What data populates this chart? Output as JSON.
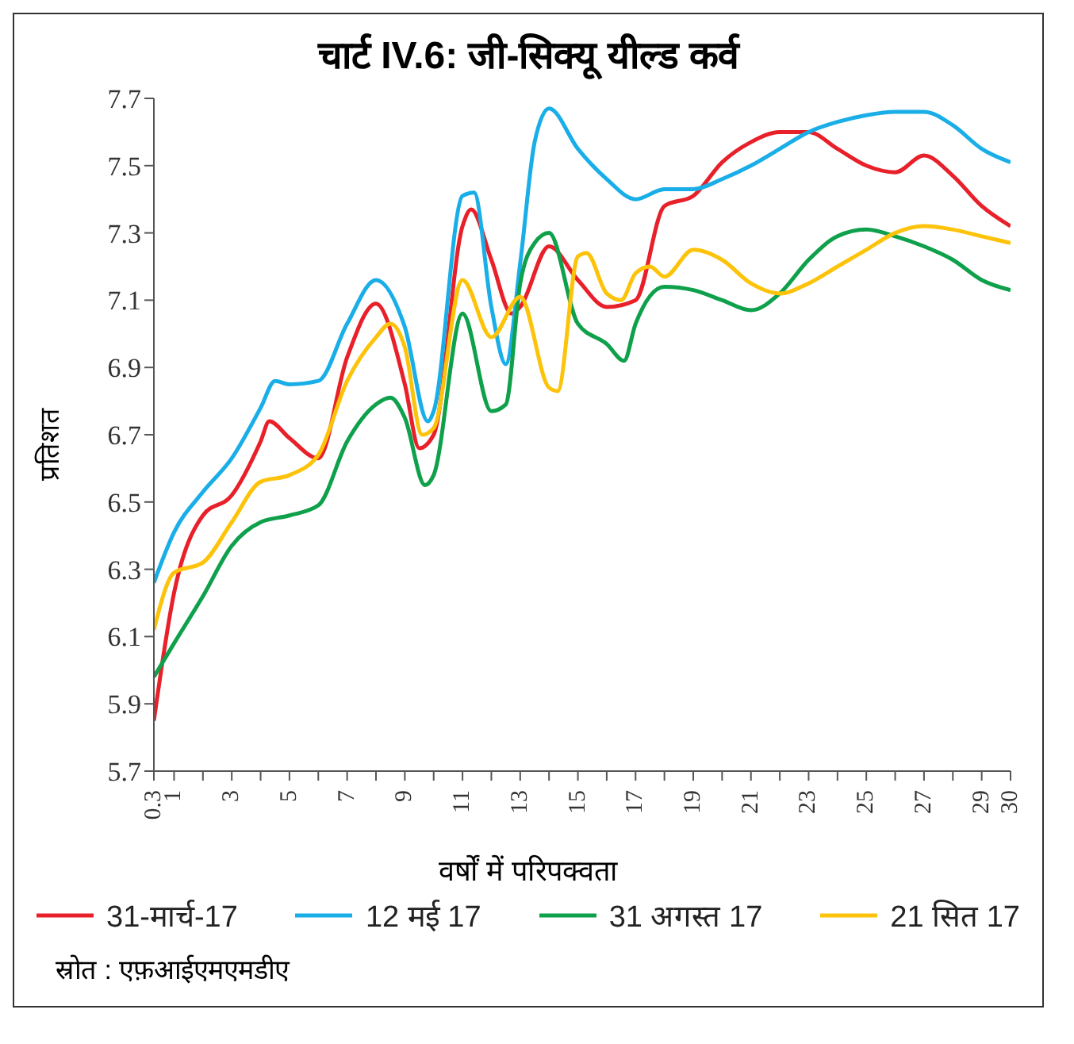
{
  "chart_data": {
    "type": "line",
    "title": "चार्ट IV.6: जी-सिक्यू यील्ड कर्व",
    "xlabel": "वर्षों में परिपक्वता",
    "ylabel": "प्रतिशत",
    "xlim": [
      0.3,
      30
    ],
    "xticks": [
      0.3,
      1,
      {
        "value": 2,
        "label": null
      },
      3,
      {
        "value": 4,
        "label": null
      },
      5,
      {
        "value": 6,
        "label": null
      },
      7,
      {
        "value": 8,
        "label": null
      },
      9,
      {
        "value": 10,
        "label": null
      },
      11,
      {
        "value": 12,
        "label": null
      },
      13,
      {
        "value": 14,
        "label": null
      },
      15,
      {
        "value": 16,
        "label": null
      },
      17,
      {
        "value": 18,
        "label": null
      },
      19,
      {
        "value": 20,
        "label": null
      },
      21,
      {
        "value": 22,
        "label": null
      },
      23,
      {
        "value": 24,
        "label": null
      },
      25,
      {
        "value": 26,
        "label": null
      },
      27,
      {
        "value": 28,
        "label": null
      },
      29,
      30
    ],
    "ylim": [
      5.7,
      7.7
    ],
    "yticks": [
      5.7,
      5.9,
      6.1,
      6.3,
      6.5,
      6.7,
      6.9,
      7.1,
      7.3,
      7.5,
      7.7
    ],
    "grid": false,
    "legend": "bottom",
    "marker": "none",
    "line_style": "solid",
    "annotations": [
      "स्रोत : एफ़आईएमएमडीए"
    ],
    "series": [
      {
        "name": "31-मार्च-17",
        "color": "#e8202a",
        "x": [
          0.3,
          1,
          2,
          3,
          4,
          4.3,
          5,
          6,
          7,
          8,
          9,
          9.5,
          10,
          11,
          11.3,
          12,
          12.7,
          13,
          14,
          15,
          16,
          17,
          18,
          19,
          20,
          21,
          22,
          23,
          24,
          25,
          26,
          27,
          28,
          29,
          30
        ],
        "values": [
          5.85,
          6.23,
          6.46,
          6.52,
          6.68,
          6.74,
          6.69,
          6.63,
          6.93,
          7.09,
          6.85,
          6.66,
          6.7,
          7.32,
          7.37,
          7.22,
          7.06,
          7.08,
          7.26,
          7.16,
          7.08,
          7.1,
          7.38,
          7.41,
          7.51,
          7.57,
          7.6,
          7.6,
          7.55,
          7.5,
          7.48,
          7.53,
          7.47,
          7.38,
          7.32
        ]
      },
      {
        "name": "12 मई 17",
        "color": "#1aaee8",
        "x": [
          0.3,
          1,
          2,
          3,
          4,
          4.5,
          5,
          6,
          7,
          8,
          9,
          9.8,
          10,
          11,
          11.4,
          12,
          12.5,
          13,
          13.5,
          14,
          15,
          16,
          17,
          18,
          19,
          20,
          21,
          22,
          23,
          24,
          25,
          26,
          27,
          28,
          29,
          30
        ],
        "values": [
          6.26,
          6.41,
          6.53,
          6.63,
          6.78,
          6.86,
          6.85,
          6.86,
          7.03,
          7.16,
          7.02,
          6.74,
          6.77,
          7.41,
          7.42,
          7.08,
          6.91,
          7.21,
          7.57,
          7.67,
          7.55,
          7.46,
          7.4,
          7.43,
          7.43,
          7.46,
          7.5,
          7.55,
          7.6,
          7.63,
          7.65,
          7.66,
          7.66,
          7.62,
          7.55,
          7.51
        ]
      },
      {
        "name": "31 अगस्त 17",
        "color": "#0ea04b",
        "x": [
          0.3,
          1,
          2,
          3,
          4,
          5,
          6,
          7,
          8,
          8.5,
          9,
          9.7,
          10,
          11,
          12,
          12.5,
          13,
          13.5,
          14,
          15,
          16,
          16.6,
          17,
          18,
          19,
          20,
          21,
          22,
          23,
          24,
          25,
          26,
          27,
          28,
          29,
          30
        ],
        "values": [
          5.98,
          6.08,
          6.22,
          6.37,
          6.44,
          6.46,
          6.49,
          6.68,
          6.79,
          6.81,
          6.75,
          6.55,
          6.58,
          7.06,
          6.77,
          6.79,
          7.15,
          7.27,
          7.3,
          7.03,
          6.97,
          6.92,
          7.03,
          7.14,
          7.13,
          7.1,
          7.07,
          7.12,
          7.22,
          7.29,
          7.31,
          7.29,
          7.26,
          7.22,
          7.16,
          7.13
        ]
      },
      {
        "name": "21 सित 17",
        "color": "#fdc30a",
        "x": [
          0.3,
          1,
          2,
          3,
          4,
          5,
          6,
          7,
          8,
          8.5,
          9,
          9.6,
          10,
          11,
          12,
          13,
          14,
          14.3,
          15,
          15.3,
          16,
          16.5,
          17,
          17.5,
          18,
          19,
          20,
          21,
          22,
          23,
          24,
          25,
          26,
          27,
          28,
          29,
          30
        ],
        "values": [
          6.12,
          6.29,
          6.32,
          6.44,
          6.56,
          6.58,
          6.64,
          6.86,
          6.99,
          7.03,
          6.96,
          6.7,
          6.72,
          7.16,
          6.99,
          7.11,
          6.84,
          6.83,
          7.23,
          7.24,
          7.12,
          7.1,
          7.18,
          7.2,
          7.17,
          7.25,
          7.22,
          7.15,
          7.12,
          7.15,
          7.2,
          7.25,
          7.3,
          7.32,
          7.31,
          7.29,
          7.27
        ]
      }
    ]
  }
}
